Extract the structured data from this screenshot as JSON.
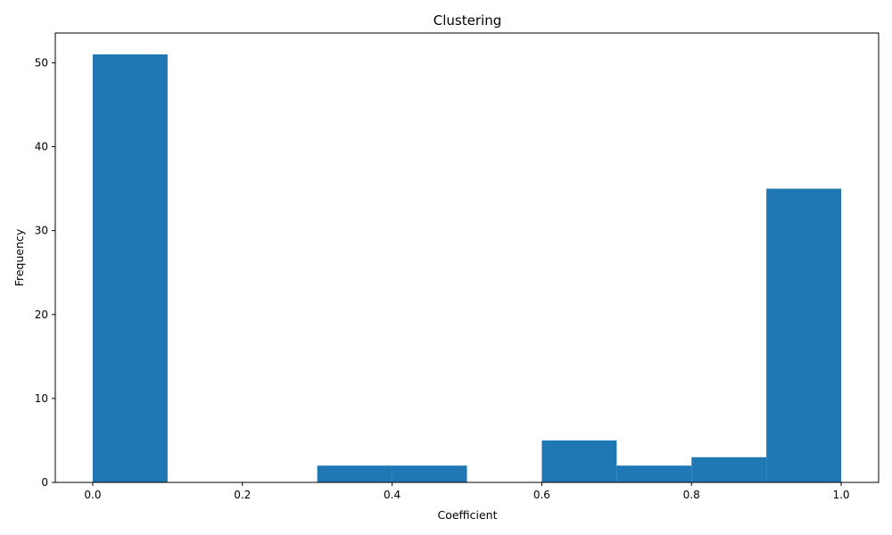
{
  "chart_data": {
    "type": "bar",
    "title": "Clustering",
    "xlabel": "Coefficient",
    "ylabel": "Frequency",
    "bins": [
      {
        "x0": 0.0,
        "x1": 0.1,
        "value": 51
      },
      {
        "x0": 0.1,
        "x1": 0.2,
        "value": 0
      },
      {
        "x0": 0.2,
        "x1": 0.3,
        "value": 0
      },
      {
        "x0": 0.3,
        "x1": 0.4,
        "value": 2
      },
      {
        "x0": 0.4,
        "x1": 0.5,
        "value": 2
      },
      {
        "x0": 0.5,
        "x1": 0.6,
        "value": 0
      },
      {
        "x0": 0.6,
        "x1": 0.7,
        "value": 5
      },
      {
        "x0": 0.7,
        "x1": 0.8,
        "value": 2
      },
      {
        "x0": 0.8,
        "x1": 0.9,
        "value": 3
      },
      {
        "x0": 0.9,
        "x1": 1.0,
        "value": 35
      }
    ],
    "xlim": [
      -0.05,
      1.05
    ],
    "ylim": [
      0,
      53.55
    ],
    "xticks": [
      0.0,
      0.2,
      0.4,
      0.6,
      0.8,
      1.0
    ],
    "xtick_labels": [
      "0.0",
      "0.2",
      "0.4",
      "0.6",
      "0.8",
      "1.0"
    ],
    "yticks": [
      0,
      10,
      20,
      30,
      40,
      50
    ],
    "ytick_labels": [
      "0",
      "10",
      "20",
      "30",
      "40",
      "50"
    ],
    "grid": false,
    "bar_color": "#1f77b4"
  }
}
